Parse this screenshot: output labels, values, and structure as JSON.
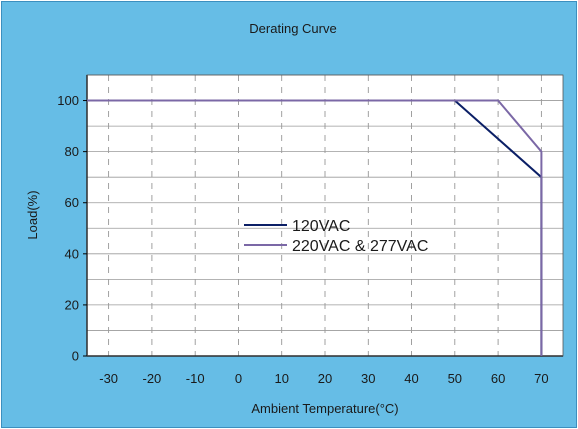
{
  "chart_data": {
    "type": "line",
    "title": "Derating Curve",
    "xlabel": "Ambient Temperature(°C)",
    "ylabel": "Load(%)",
    "xlim": [
      -35,
      75
    ],
    "ylim": [
      0,
      110
    ],
    "xticks": [
      -30,
      -20,
      -10,
      0,
      10,
      20,
      30,
      40,
      50,
      60,
      70
    ],
    "yticks": [
      0,
      20,
      40,
      60,
      80,
      100
    ],
    "grid": true,
    "legend": "center",
    "series": [
      {
        "name": "120VAC",
        "color": "#0b1f66",
        "points": [
          [
            -35,
            100
          ],
          [
            50,
            100
          ],
          [
            70,
            70
          ],
          [
            70,
            0
          ]
        ]
      },
      {
        "name": "220VAC & 277VAC",
        "color": "#7b68a6",
        "points": [
          [
            -35,
            100
          ],
          [
            60,
            100
          ],
          [
            70,
            80
          ],
          [
            70,
            0
          ]
        ]
      }
    ]
  }
}
